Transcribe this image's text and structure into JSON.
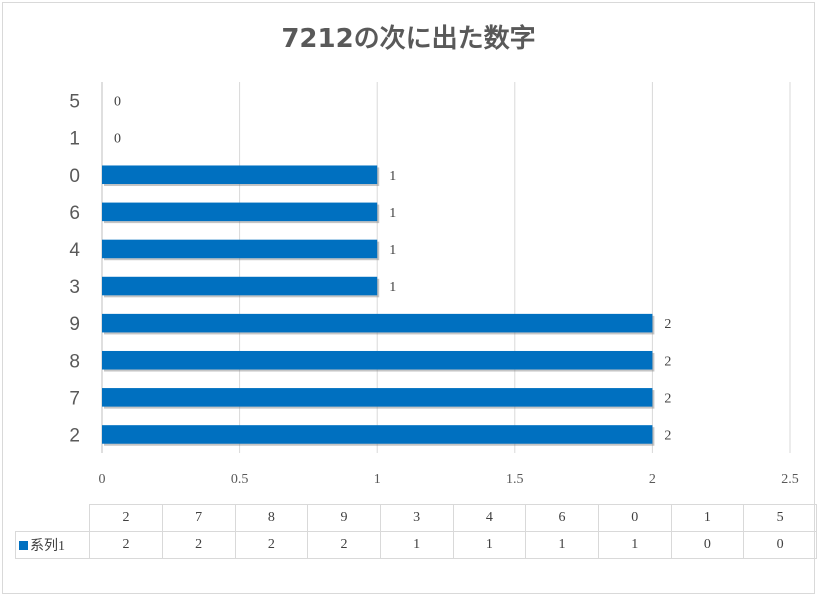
{
  "chart_data": {
    "type": "bar",
    "orientation": "horizontal",
    "title": "7212の次に出た数字",
    "categories": [
      "2",
      "7",
      "8",
      "9",
      "3",
      "4",
      "6",
      "0",
      "1",
      "5"
    ],
    "series": [
      {
        "name": "系列1",
        "values": [
          2,
          2,
          2,
          2,
          1,
          1,
          1,
          1,
          0,
          0
        ]
      }
    ],
    "xlim": [
      0,
      2.5
    ],
    "x_ticks": [
      "0",
      "0.5",
      "1",
      "1.5",
      "2",
      "2.5"
    ],
    "grid": true,
    "data_labels": true,
    "data_table": true,
    "bar_color": "#0070c0"
  }
}
